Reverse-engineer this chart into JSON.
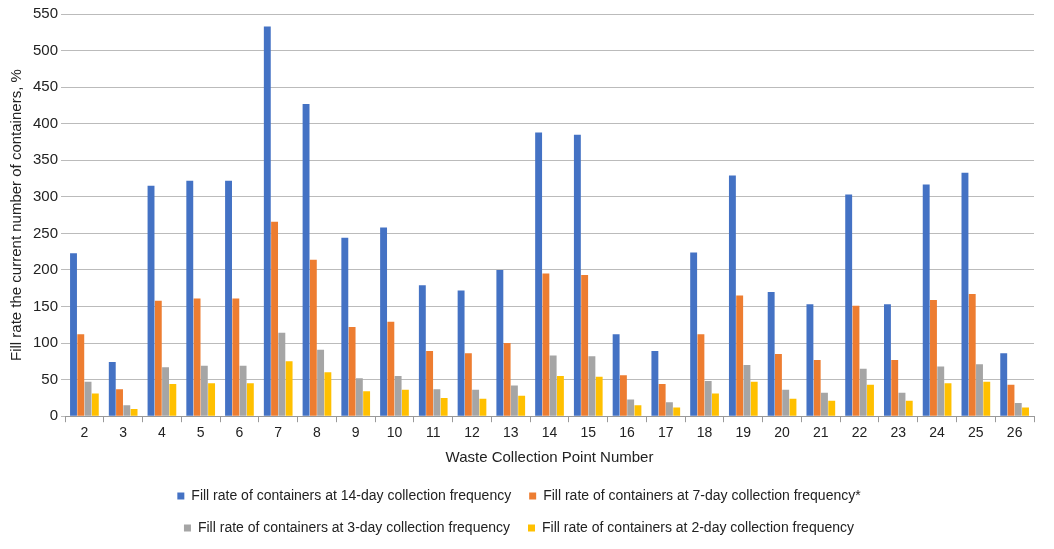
{
  "chart_data": {
    "type": "bar",
    "xlabel": "Waste Collection Point Number",
    "ylabel": "Fill rate the current number of containers, %",
    "categories": [
      "2",
      "3",
      "4",
      "5",
      "6",
      "7",
      "8",
      "9",
      "10",
      "11",
      "12",
      "13",
      "14",
      "15",
      "16",
      "17",
      "18",
      "19",
      "20",
      "21",
      "22",
      "23",
      "24",
      "25",
      "26"
    ],
    "series": [
      {
        "name": "Fill rate of containers at 14-day collection frequency",
        "color": "#4472c4",
        "values": [
          223,
          74,
          315,
          322,
          322,
          533,
          427,
          244,
          258,
          179,
          172,
          200,
          388,
          385,
          112,
          89,
          224,
          329,
          170,
          153,
          303,
          153,
          317,
          333,
          86
        ]
      },
      {
        "name": "Fill rate of containers at 7-day collection frequency*",
        "color": "#ed7d31",
        "values": [
          112,
          37,
          158,
          161,
          161,
          266,
          214,
          122,
          129,
          89,
          86,
          100,
          195,
          193,
          56,
          44,
          112,
          165,
          85,
          77,
          151,
          77,
          159,
          167,
          43
        ]
      },
      {
        "name": "Fill rate of containers at 3-day collection frequency",
        "color": "#a5a5a5",
        "values": [
          47,
          15,
          67,
          69,
          69,
          114,
          91,
          52,
          55,
          37,
          36,
          42,
          83,
          82,
          23,
          19,
          48,
          70,
          36,
          32,
          65,
          32,
          68,
          71,
          18
        ]
      },
      {
        "name": "Fill rate of containers at 2-day collection frequency",
        "color": "#ffc000",
        "values": [
          31,
          10,
          44,
          45,
          45,
          75,
          60,
          34,
          36,
          25,
          24,
          28,
          55,
          54,
          15,
          12,
          31,
          47,
          24,
          21,
          43,
          21,
          45,
          47,
          12
        ]
      }
    ],
    "ylim": [
      0,
      550
    ],
    "yticks": [
      0,
      50,
      100,
      150,
      200,
      250,
      300,
      350,
      400,
      450,
      500,
      550
    ],
    "grid": "y",
    "legend": "bottom"
  }
}
